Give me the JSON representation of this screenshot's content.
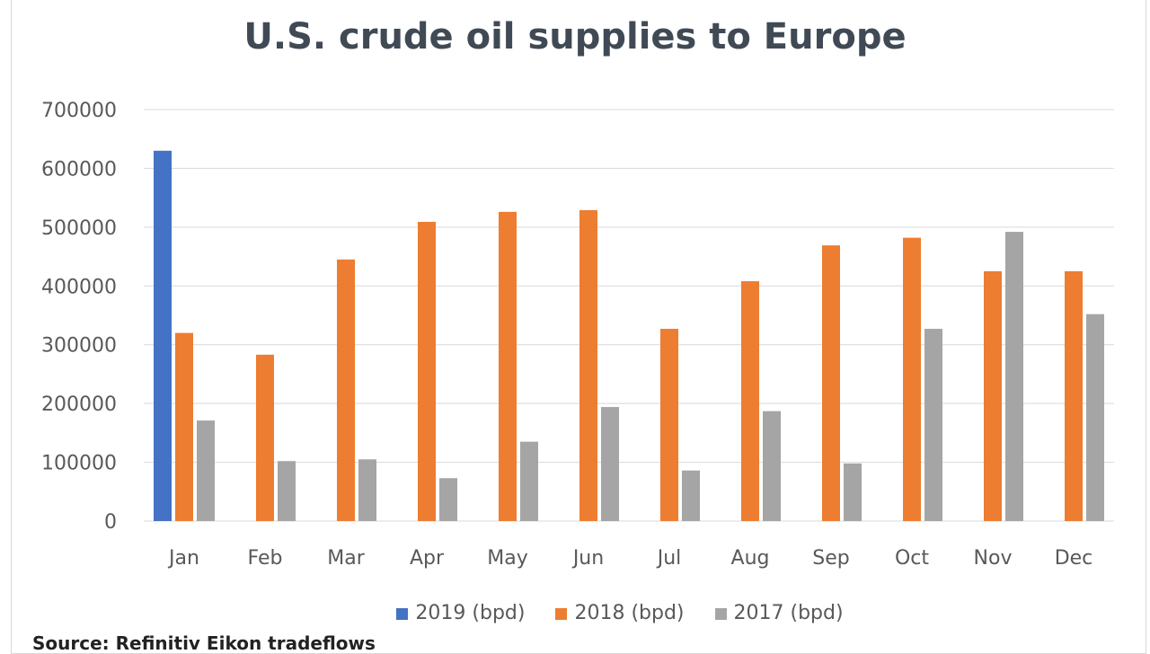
{
  "chart_data": {
    "type": "bar",
    "title": "U.S. crude oil supplies to Europe",
    "xlabel": "",
    "ylabel": "",
    "ylim": [
      0,
      700000
    ],
    "yticks": [
      "0",
      "100000",
      "200000",
      "300000",
      "400000",
      "500000",
      "600000",
      "700000"
    ],
    "grid": true,
    "legend_position": "bottom",
    "categories": [
      "Jan",
      "Feb",
      "Mar",
      "Apr",
      "May",
      "Jun",
      "Jul",
      "Aug",
      "Sep",
      "Oct",
      "Nov",
      "Dec"
    ],
    "series": [
      {
        "name": "2019 (bpd)",
        "color": "#4472c4",
        "values": [
          630000,
          null,
          null,
          null,
          null,
          null,
          null,
          null,
          null,
          null,
          null,
          null
        ]
      },
      {
        "name": "2018 (bpd)",
        "color": "#ed7d31",
        "values": [
          320000,
          283000,
          445000,
          509000,
          526000,
          529000,
          327000,
          408000,
          469000,
          482000,
          425000,
          425000
        ]
      },
      {
        "name": "2017 (bpd)",
        "color": "#a5a5a5",
        "values": [
          171000,
          102000,
          105000,
          73000,
          135000,
          194000,
          86000,
          187000,
          98000,
          327000,
          492000,
          352000
        ]
      }
    ],
    "source": "Source: Refinitiv Eikon tradeflows"
  }
}
